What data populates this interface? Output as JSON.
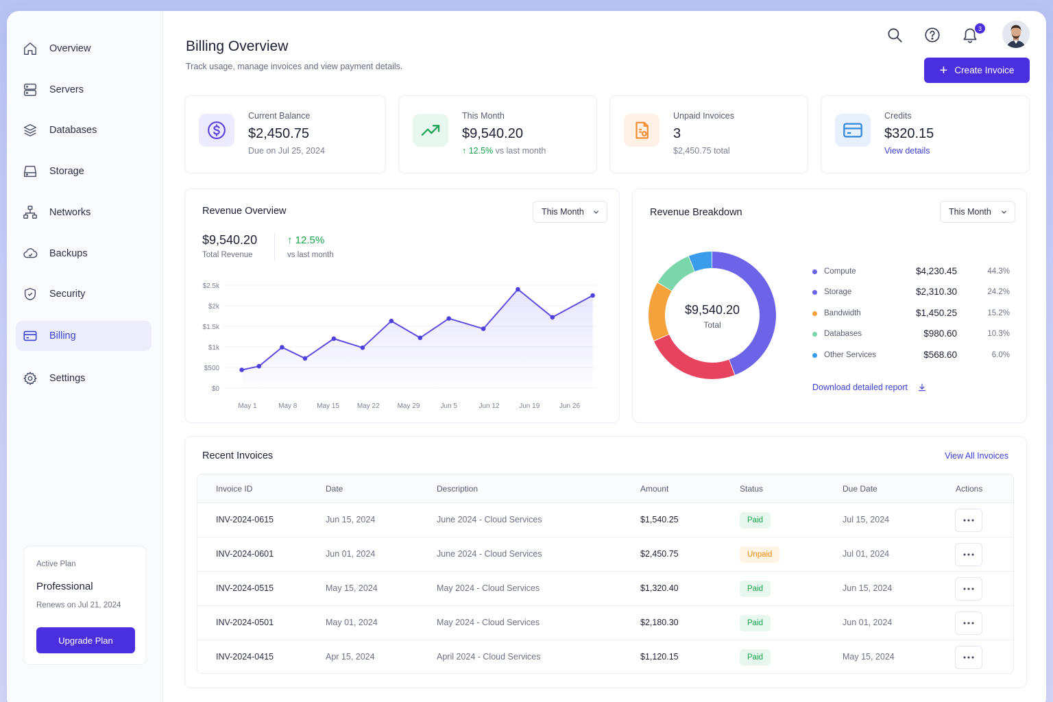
{
  "colors": {
    "accent": "#4a2fe0",
    "success": "#16a34a",
    "warning": "#ea8a0e",
    "compute": "#6c63e8",
    "storage": "#e8435e",
    "bandwidth": "#f6a23c",
    "databases": "#7cd6ac",
    "other": "#3b9cec"
  },
  "sidebar": {
    "items": [
      {
        "label": "Overview",
        "icon": "home-icon"
      },
      {
        "label": "Servers",
        "icon": "server-icon"
      },
      {
        "label": "Databases",
        "icon": "database-icon"
      },
      {
        "label": "Storage",
        "icon": "hard-drive-icon"
      },
      {
        "label": "Networks",
        "icon": "network-icon"
      },
      {
        "label": "Backups",
        "icon": "cloud-backup-icon"
      },
      {
        "label": "Security",
        "icon": "shield-icon"
      },
      {
        "label": "Billing",
        "icon": "credit-card-icon",
        "active": true
      },
      {
        "label": "Settings",
        "icon": "gear-icon"
      }
    ],
    "plan": {
      "label": "Active Plan",
      "name": "Professional",
      "renews": "Renews on Jul 21, 2024",
      "button": "Upgrade Plan"
    }
  },
  "header": {
    "title": "Billing Overview",
    "subtitle": "Track usage, manage invoices and view payment details.",
    "notification_count": "3",
    "create_button": "Create Invoice"
  },
  "stats": [
    {
      "label": "Current Balance",
      "value": "$2,450.75",
      "sub": "Due on Jul 25, 2024",
      "icon": "dollar-circle-icon"
    },
    {
      "label": "This Month",
      "value": "$9,540.20",
      "sub_pct": "12.5%",
      "sub_rest": "vs last month",
      "icon": "trending-up-icon"
    },
    {
      "label": "Unpaid Invoices",
      "value": "3",
      "sub": "$2,450.75 total",
      "icon": "invoice-document-icon"
    },
    {
      "label": "Credits",
      "value": "$320.15",
      "sub": "View details",
      "icon": "credit-card-icon"
    }
  ],
  "revenue": {
    "title": "Revenue Overview",
    "period": "This Month",
    "total": "$9,540.20",
    "total_label": "Total Revenue",
    "change": "12.5%",
    "change_label": "vs last month"
  },
  "chart_data": {
    "type": "area",
    "x_ticks": [
      "May 1",
      "May 8",
      "May 15",
      "May 22",
      "May 29",
      "Jun 5",
      "Jun 12",
      "Jun 19",
      "Jun 26"
    ],
    "y_ticks": [
      "$0",
      "$500",
      "$1k",
      "$1.5k",
      "$2k",
      "$2.5k"
    ],
    "ylim": [
      0,
      2500
    ],
    "grid": true,
    "series": [
      {
        "x": [
          "Apr 30",
          "May 3",
          "May 7",
          "May 11",
          "May 16",
          "May 21",
          "May 26",
          "May 31",
          "Jun 5",
          "Jun 11",
          "Jun 17",
          "Jun 23",
          "Jun 30"
        ],
        "values": [
          440,
          530,
          990,
          720,
          1200,
          980,
          1630,
          1220,
          1690,
          1440,
          2400,
          1720,
          2250
        ]
      }
    ]
  },
  "breakdown": {
    "title": "Revenue Breakdown",
    "period": "This Month",
    "center_value": "$9,540.20",
    "center_label": "Total",
    "items": [
      {
        "name": "Compute",
        "value": "$4,230.45",
        "pct": "44.3%",
        "share": 44.3,
        "color": "#6c63e8"
      },
      {
        "name": "Storage",
        "value": "$2,310.30",
        "pct": "24.2%",
        "share": 24.2,
        "color": "#e8435e"
      },
      {
        "name": "Bandwidth",
        "value": "$1,450.25",
        "pct": "15.2%",
        "share": 15.2,
        "color": "#f6a23c"
      },
      {
        "name": "Databases",
        "value": "$980.60",
        "pct": "10.3%",
        "share": 10.3,
        "color": "#7cd6ac"
      },
      {
        "name": "Other Services",
        "value": "$568.60",
        "pct": "6.0%",
        "share": 6.0,
        "color": "#3b9cec"
      }
    ],
    "download": "Download detailed report"
  },
  "invoices": {
    "title": "Recent Invoices",
    "view_all": "View All Invoices",
    "columns": [
      "Invoice ID",
      "Date",
      "Description",
      "Amount",
      "Status",
      "Due Date",
      "Actions"
    ],
    "rows": [
      {
        "id": "INV-2024-0615",
        "date": "Jun 15, 2024",
        "desc": "June 2024 - Cloud Services",
        "amount": "$1,540.25",
        "status": "Paid",
        "due": "Jul 15, 2024"
      },
      {
        "id": "INV-2024-0601",
        "date": "Jun 01, 2024",
        "desc": "June 2024 - Cloud Services",
        "amount": "$2,450.75",
        "status": "Unpaid",
        "due": "Jul 01, 2024"
      },
      {
        "id": "INV-2024-0515",
        "date": "May 15, 2024",
        "desc": "May 2024 - Cloud Services",
        "amount": "$1,320.40",
        "status": "Paid",
        "due": "Jun 15, 2024"
      },
      {
        "id": "INV-2024-0501",
        "date": "May 01, 2024",
        "desc": "May 2024 - Cloud Services",
        "amount": "$2,180.30",
        "status": "Paid",
        "due": "Jun 01, 2024"
      },
      {
        "id": "INV-2024-0415",
        "date": "Apr 15, 2024",
        "desc": "April 2024 - Cloud Services",
        "amount": "$1,120.15",
        "status": "Paid",
        "due": "May 15, 2024"
      }
    ]
  }
}
